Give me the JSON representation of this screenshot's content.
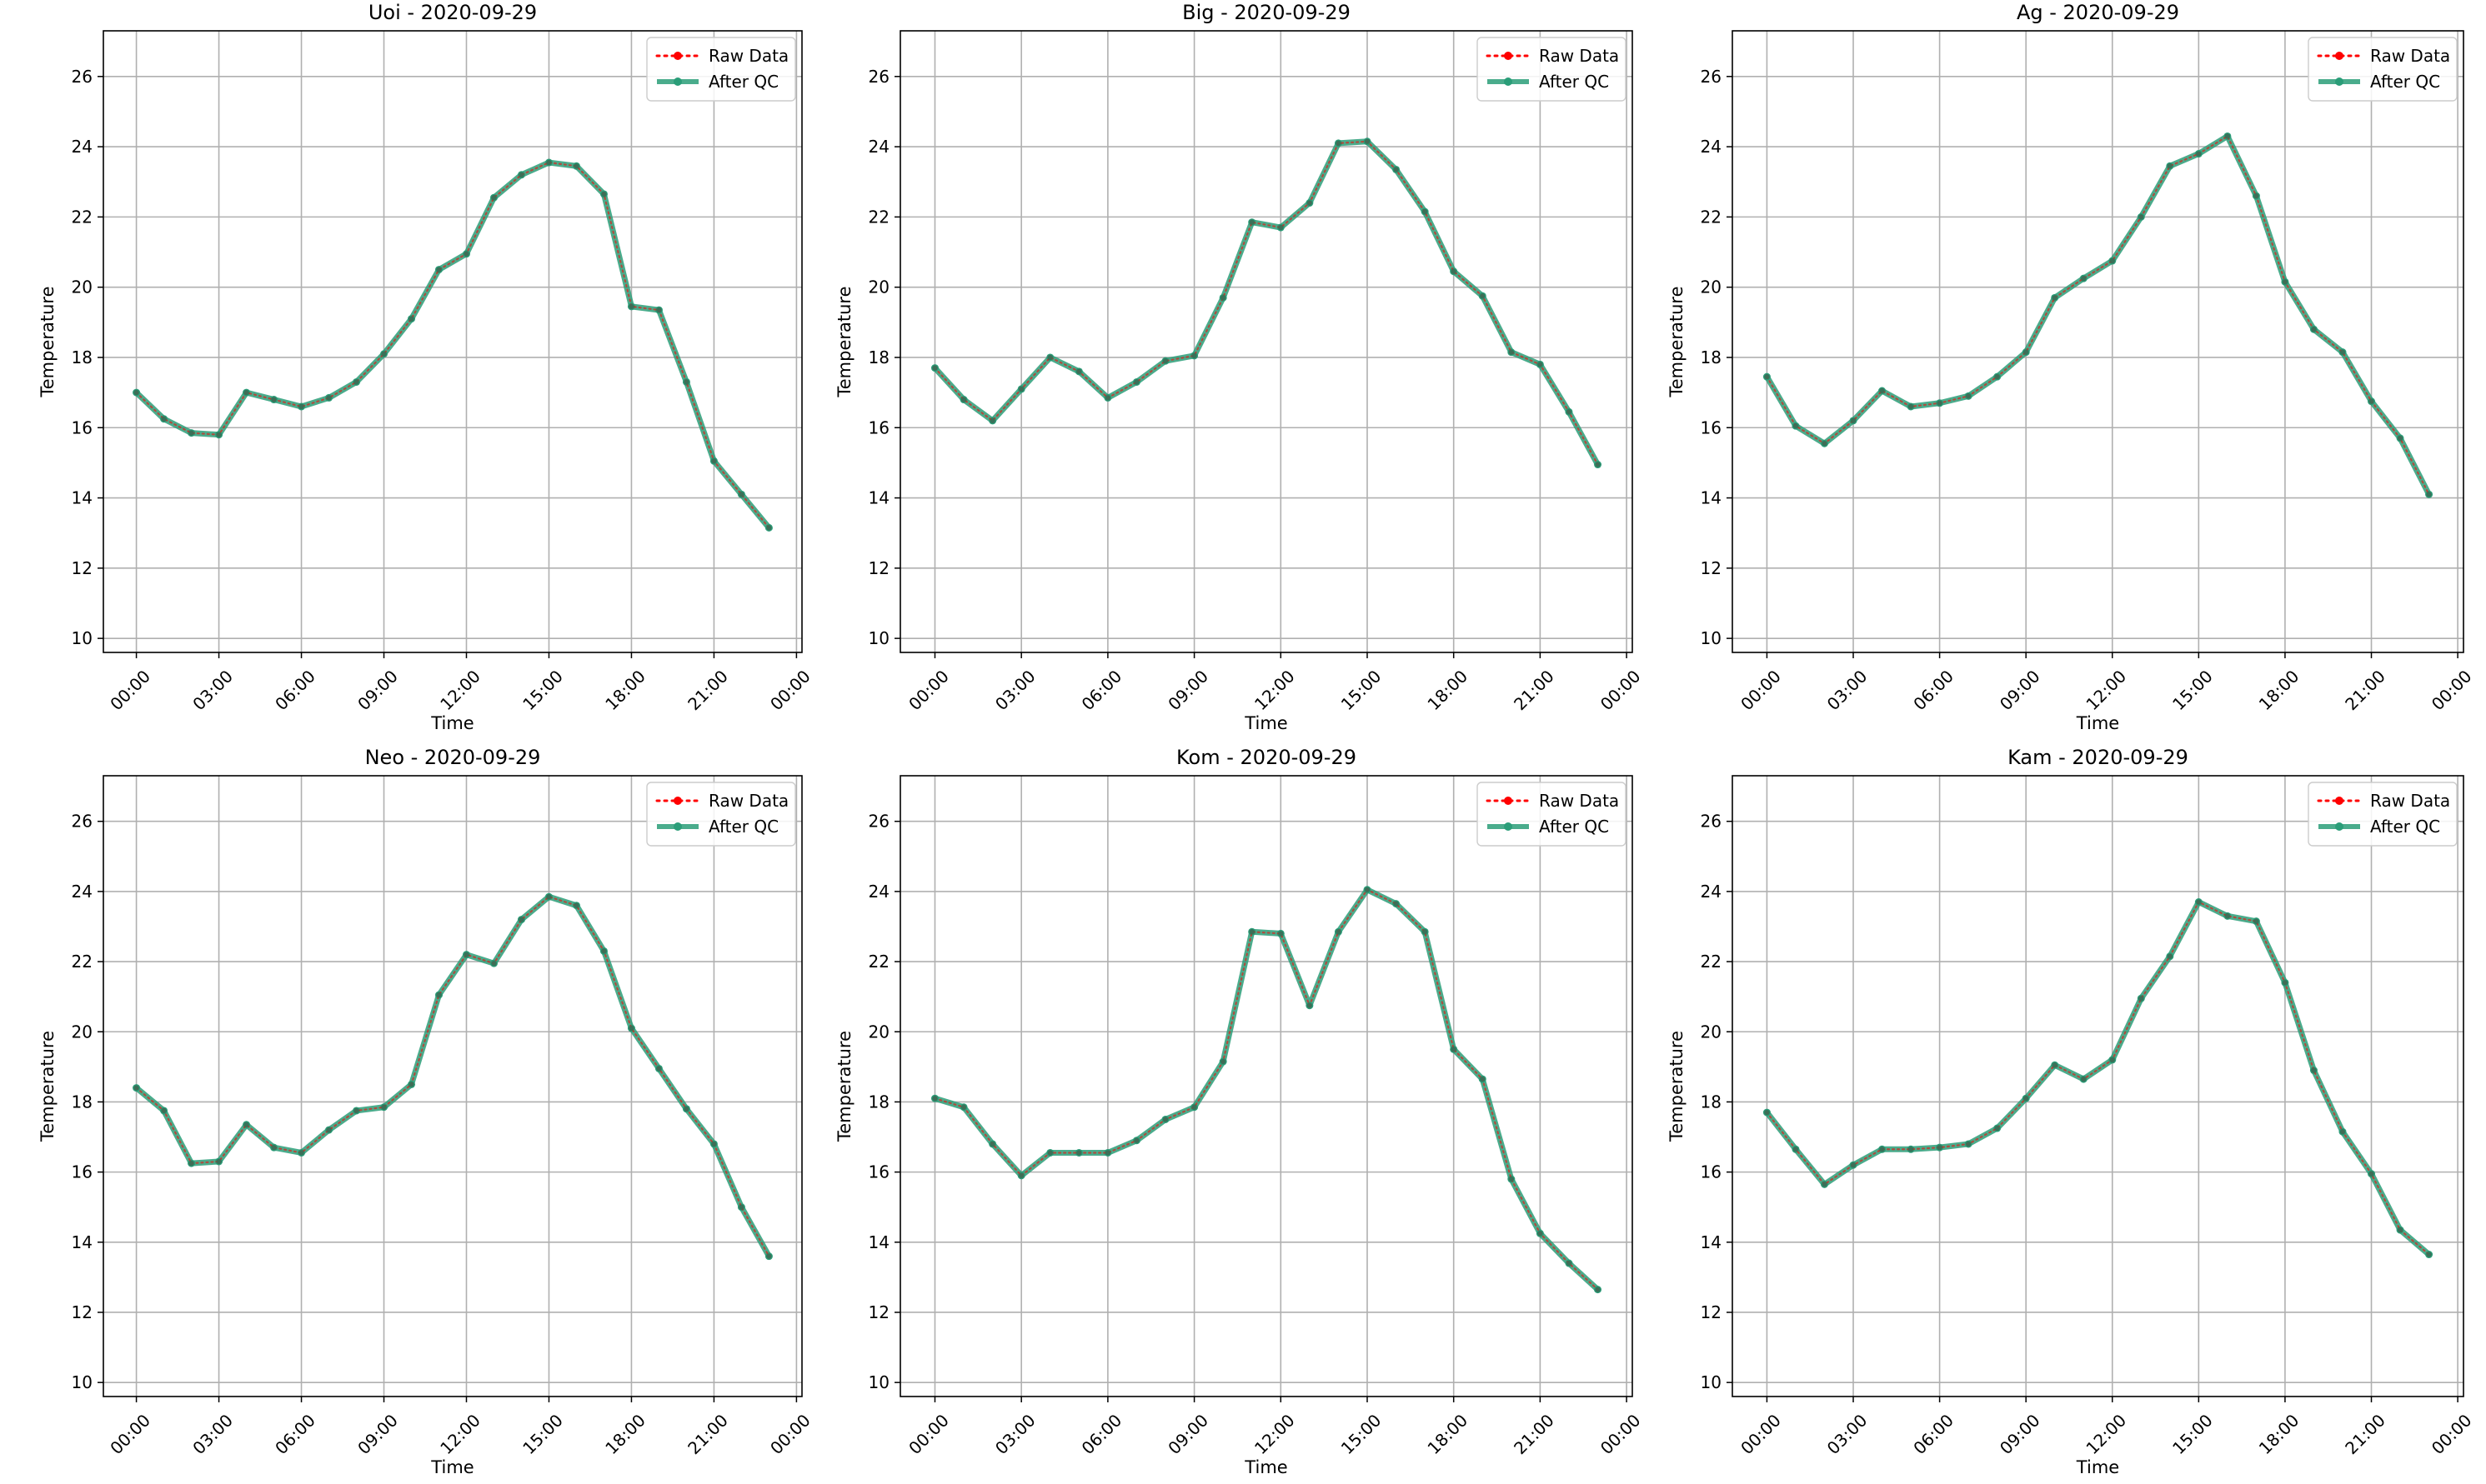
{
  "figure": {
    "date": "2020-09-29",
    "legend_labels": [
      "Raw Data",
      "After QC"
    ]
  },
  "chart_data": [
    {
      "type": "line",
      "title": "Uoi - 2020-09-29",
      "xlabel": "Time",
      "ylabel": "Temperature",
      "x_tick_labels": [
        "00:00",
        "03:00",
        "06:00",
        "09:00",
        "12:00",
        "15:00",
        "18:00",
        "21:00",
        "00:00"
      ],
      "x_hours": [
        0,
        1,
        2,
        3,
        4,
        5,
        6,
        7,
        8,
        9,
        10,
        11,
        12,
        13,
        14,
        15,
        16,
        17,
        18,
        19,
        20,
        21,
        22,
        23
      ],
      "xlim_hours": [
        -1.2,
        24.2
      ],
      "ylim": [
        9.6,
        27.3
      ],
      "y_ticks": [
        10,
        12,
        14,
        16,
        18,
        20,
        22,
        24,
        26
      ],
      "grid": true,
      "legend_position": "upper right",
      "colors": {
        "raw": "#ff0000",
        "qc": "#2a9d78"
      },
      "series": [
        {
          "name": "Raw Data",
          "style": "dotted",
          "values": [
            17.0,
            16.25,
            15.85,
            15.8,
            17.0,
            16.8,
            16.6,
            16.85,
            17.3,
            18.1,
            19.1,
            20.5,
            20.95,
            22.55,
            23.2,
            23.55,
            23.45,
            22.65,
            19.45,
            19.35,
            17.3,
            15.05,
            14.1,
            13.15
          ]
        },
        {
          "name": "After QC",
          "style": "solid",
          "values": [
            17.0,
            16.25,
            15.85,
            15.8,
            17.0,
            16.8,
            16.6,
            16.85,
            17.3,
            18.1,
            19.1,
            20.5,
            20.95,
            22.55,
            23.2,
            23.55,
            23.45,
            22.65,
            19.45,
            19.35,
            17.3,
            15.05,
            14.1,
            13.15
          ]
        }
      ]
    },
    {
      "type": "line",
      "title": "Big - 2020-09-29",
      "xlabel": "Time",
      "ylabel": "Temperature",
      "x_tick_labels": [
        "00:00",
        "03:00",
        "06:00",
        "09:00",
        "12:00",
        "15:00",
        "18:00",
        "21:00",
        "00:00"
      ],
      "x_hours": [
        0,
        1,
        2,
        3,
        4,
        5,
        6,
        7,
        8,
        9,
        10,
        11,
        12,
        13,
        14,
        15,
        16,
        17,
        18,
        19,
        20,
        21,
        22,
        23
      ],
      "xlim_hours": [
        -1.2,
        24.2
      ],
      "ylim": [
        9.6,
        27.3
      ],
      "y_ticks": [
        10,
        12,
        14,
        16,
        18,
        20,
        22,
        24,
        26
      ],
      "grid": true,
      "legend_position": "upper right",
      "colors": {
        "raw": "#ff0000",
        "qc": "#2a9d78"
      },
      "series": [
        {
          "name": "Raw Data",
          "style": "dotted",
          "values": [
            17.7,
            16.8,
            16.2,
            17.1,
            18.0,
            17.6,
            16.85,
            17.3,
            17.9,
            18.05,
            19.7,
            21.85,
            21.7,
            22.4,
            24.1,
            24.15,
            23.35,
            22.15,
            20.45,
            19.75,
            18.15,
            17.8,
            16.45,
            14.95
          ]
        },
        {
          "name": "After QC",
          "style": "solid",
          "values": [
            17.7,
            16.8,
            16.2,
            17.1,
            18.0,
            17.6,
            16.85,
            17.3,
            17.9,
            18.05,
            19.7,
            21.85,
            21.7,
            22.4,
            24.1,
            24.15,
            23.35,
            22.15,
            20.45,
            19.75,
            18.15,
            17.8,
            16.45,
            14.95
          ]
        }
      ]
    },
    {
      "type": "line",
      "title": "Ag - 2020-09-29",
      "xlabel": "Time",
      "ylabel": "Temperature",
      "x_tick_labels": [
        "00:00",
        "03:00",
        "06:00",
        "09:00",
        "12:00",
        "15:00",
        "18:00",
        "21:00",
        "00:00"
      ],
      "x_hours": [
        0,
        1,
        2,
        3,
        4,
        5,
        6,
        7,
        8,
        9,
        10,
        11,
        12,
        13,
        14,
        15,
        16,
        17,
        18,
        19,
        20,
        21,
        22,
        23
      ],
      "xlim_hours": [
        -1.2,
        24.2
      ],
      "ylim": [
        9.6,
        27.3
      ],
      "y_ticks": [
        10,
        12,
        14,
        16,
        18,
        20,
        22,
        24,
        26
      ],
      "grid": true,
      "legend_position": "upper right",
      "colors": {
        "raw": "#ff0000",
        "qc": "#2a9d78"
      },
      "series": [
        {
          "name": "Raw Data",
          "style": "dotted",
          "values": [
            17.45,
            16.05,
            15.55,
            16.2,
            17.05,
            16.6,
            16.7,
            16.9,
            17.45,
            18.15,
            19.7,
            20.25,
            20.75,
            22.0,
            23.45,
            23.8,
            24.3,
            22.6,
            20.15,
            18.8,
            18.15,
            16.75,
            15.7,
            14.1
          ]
        },
        {
          "name": "After QC",
          "style": "solid",
          "values": [
            17.45,
            16.05,
            15.55,
            16.2,
            17.05,
            16.6,
            16.7,
            16.9,
            17.45,
            18.15,
            19.7,
            20.25,
            20.75,
            22.0,
            23.45,
            23.8,
            24.3,
            22.6,
            20.15,
            18.8,
            18.15,
            16.75,
            15.7,
            14.1
          ]
        }
      ]
    },
    {
      "type": "line",
      "title": "Neo - 2020-09-29",
      "xlabel": "Time",
      "ylabel": "Temperature",
      "x_tick_labels": [
        "00:00",
        "03:00",
        "06:00",
        "09:00",
        "12:00",
        "15:00",
        "18:00",
        "21:00",
        "00:00"
      ],
      "x_hours": [
        0,
        1,
        2,
        3,
        4,
        5,
        6,
        7,
        8,
        9,
        10,
        11,
        12,
        13,
        14,
        15,
        16,
        17,
        18,
        19,
        20,
        21,
        22,
        23
      ],
      "xlim_hours": [
        -1.2,
        24.2
      ],
      "ylim": [
        9.6,
        27.3
      ],
      "y_ticks": [
        10,
        12,
        14,
        16,
        18,
        20,
        22,
        24,
        26
      ],
      "grid": true,
      "legend_position": "upper right",
      "colors": {
        "raw": "#ff0000",
        "qc": "#2a9d78"
      },
      "series": [
        {
          "name": "Raw Data",
          "style": "dotted",
          "values": [
            18.4,
            17.75,
            16.25,
            16.3,
            17.35,
            16.7,
            16.55,
            17.2,
            17.75,
            17.85,
            18.5,
            21.05,
            22.2,
            21.95,
            23.2,
            23.85,
            23.6,
            22.3,
            20.1,
            18.95,
            17.8,
            16.8,
            15.0,
            13.6
          ]
        },
        {
          "name": "After QC",
          "style": "solid",
          "values": [
            18.4,
            17.75,
            16.25,
            16.3,
            17.35,
            16.7,
            16.55,
            17.2,
            17.75,
            17.85,
            18.5,
            21.05,
            22.2,
            21.95,
            23.2,
            23.85,
            23.6,
            22.3,
            20.1,
            18.95,
            17.8,
            16.8,
            15.0,
            13.6
          ]
        }
      ]
    },
    {
      "type": "line",
      "title": "Kom - 2020-09-29",
      "xlabel": "Time",
      "ylabel": "Temperature",
      "x_tick_labels": [
        "00:00",
        "03:00",
        "06:00",
        "09:00",
        "12:00",
        "15:00",
        "18:00",
        "21:00",
        "00:00"
      ],
      "x_hours": [
        0,
        1,
        2,
        3,
        4,
        5,
        6,
        7,
        8,
        9,
        10,
        11,
        12,
        13,
        14,
        15,
        16,
        17,
        18,
        19,
        20,
        21,
        22,
        23
      ],
      "xlim_hours": [
        -1.2,
        24.2
      ],
      "ylim": [
        9.6,
        27.3
      ],
      "y_ticks": [
        10,
        12,
        14,
        16,
        18,
        20,
        22,
        24,
        26
      ],
      "grid": true,
      "legend_position": "upper right",
      "colors": {
        "raw": "#ff0000",
        "qc": "#2a9d78"
      },
      "series": [
        {
          "name": "Raw Data",
          "style": "dotted",
          "values": [
            18.1,
            17.85,
            16.8,
            15.9,
            16.55,
            16.55,
            16.55,
            16.9,
            17.5,
            17.85,
            19.15,
            22.85,
            22.8,
            20.75,
            22.85,
            24.05,
            23.65,
            22.85,
            19.5,
            18.65,
            15.8,
            14.25,
            13.4,
            12.65
          ]
        },
        {
          "name": "After QC",
          "style": "solid",
          "values": [
            18.1,
            17.85,
            16.8,
            15.9,
            16.55,
            16.55,
            16.55,
            16.9,
            17.5,
            17.85,
            19.15,
            22.85,
            22.8,
            20.75,
            22.85,
            24.05,
            23.65,
            22.85,
            19.5,
            18.65,
            15.8,
            14.25,
            13.4,
            12.65
          ]
        }
      ]
    },
    {
      "type": "line",
      "title": "Kam - 2020-09-29",
      "xlabel": "Time",
      "ylabel": "Temperature",
      "x_tick_labels": [
        "00:00",
        "03:00",
        "06:00",
        "09:00",
        "12:00",
        "15:00",
        "18:00",
        "21:00",
        "00:00"
      ],
      "x_hours": [
        0,
        1,
        2,
        3,
        4,
        5,
        6,
        7,
        8,
        9,
        10,
        11,
        12,
        13,
        14,
        15,
        16,
        17,
        18,
        19,
        20,
        21,
        22,
        23
      ],
      "xlim_hours": [
        -1.2,
        24.2
      ],
      "ylim": [
        9.6,
        27.3
      ],
      "y_ticks": [
        10,
        12,
        14,
        16,
        18,
        20,
        22,
        24,
        26
      ],
      "grid": true,
      "legend_position": "upper right",
      "colors": {
        "raw": "#ff0000",
        "qc": "#2a9d78"
      },
      "series": [
        {
          "name": "Raw Data",
          "style": "dotted",
          "values": [
            17.7,
            16.65,
            15.65,
            16.2,
            16.65,
            16.65,
            16.7,
            16.8,
            17.25,
            18.1,
            19.05,
            18.65,
            19.2,
            20.95,
            22.15,
            23.7,
            23.3,
            23.15,
            21.4,
            18.9,
            17.15,
            15.95,
            14.35,
            13.65
          ]
        },
        {
          "name": "After QC",
          "style": "solid",
          "values": [
            17.7,
            16.65,
            15.65,
            16.2,
            16.65,
            16.65,
            16.7,
            16.8,
            17.25,
            18.1,
            19.05,
            18.65,
            19.2,
            20.95,
            22.15,
            23.7,
            23.3,
            23.15,
            21.4,
            18.9,
            17.15,
            15.95,
            14.35,
            13.65
          ]
        }
      ]
    }
  ]
}
